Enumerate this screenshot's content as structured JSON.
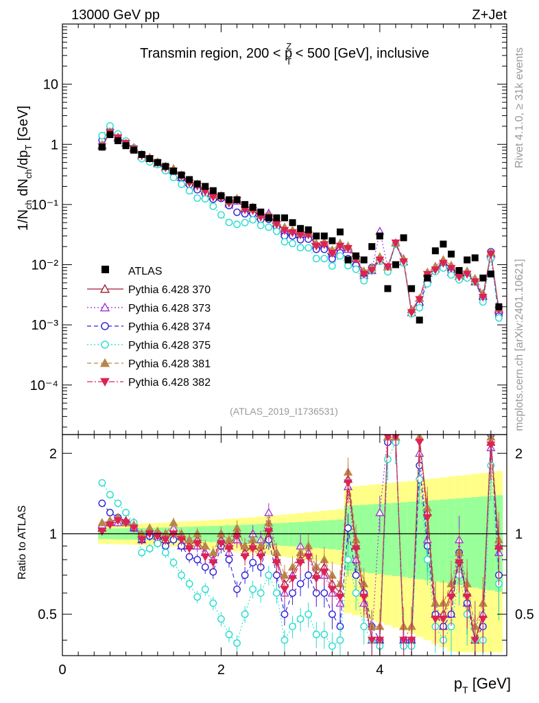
{
  "chart_data": {
    "type": "scatter",
    "header_left": "13000 GeV pp",
    "header_right": "Z+Jet",
    "title_main": "Transmin region, 200 < p",
    "title_sup": "Z",
    "title_sub": "T",
    "title_rest": " < 500 [GeV], inclusive",
    "ylabel_main": "1/N",
    "ylabel_sub1": "ch",
    "ylabel_mid": " dN",
    "ylabel_sub2": "ch",
    "ylabel_mid2": "/dp",
    "ylabel_sub3": "T",
    "ylabel_end": " [GeV]",
    "ratio_ylabel": "Ratio to ATLAS",
    "xlabel_main": "p",
    "xlabel_sub": "T",
    "xlabel_end": " [GeV]",
    "side_label_1": "Rivet 4.1.0, ≥ 31k events",
    "side_label_2": "mcplots.cern.ch [arXiv:2401.10621]",
    "analysis_id": "(ATLAS_2019_I1736531)",
    "xlim": [
      0,
      5.6
    ],
    "main_ylim": [
      1.5e-05,
      100
    ],
    "ratio_ylim": [
      0.35,
      2.35
    ],
    "x_ticks": [
      "0",
      "2",
      "4"
    ],
    "main_y_ticks": [
      "10",
      "1",
      "10⁻¹",
      "10⁻²",
      "10⁻³",
      "10⁻⁴"
    ],
    "ratio_y_ticks": [
      "2",
      "1",
      "0.5"
    ],
    "x": [
      0.5,
      0.6,
      0.7,
      0.8,
      0.9,
      1.0,
      1.1,
      1.2,
      1.3,
      1.4,
      1.5,
      1.6,
      1.7,
      1.8,
      1.9,
      2.0,
      2.1,
      2.2,
      2.3,
      2.4,
      2.5,
      2.6,
      2.7,
      2.8,
      2.9,
      3.0,
      3.1,
      3.2,
      3.3,
      3.4,
      3.5,
      3.6,
      3.7,
      3.8,
      3.9,
      4.0,
      4.1,
      4.2,
      4.3,
      4.4,
      4.5,
      4.6,
      4.7,
      4.8,
      4.9,
      5.0,
      5.1,
      5.2,
      5.3,
      5.4,
      5.5
    ],
    "atlas": [
      0.9,
      1.45,
      1.15,
      0.95,
      0.8,
      0.68,
      0.58,
      0.5,
      0.43,
      0.36,
      0.31,
      0.26,
      0.22,
      0.2,
      0.17,
      0.14,
      0.12,
      0.12,
      0.1,
      0.09,
      0.075,
      0.06,
      0.06,
      0.06,
      0.05,
      0.04,
      0.038,
      0.03,
      0.03,
      0.025,
      0.035,
      0.012,
      0.014,
      0.012,
      0.02,
      0.03,
      0.004,
      0.01,
      0.028,
      0.004,
      0.0012,
      0.006,
      0.017,
      0.022,
      0.015,
      0.008,
      0.012,
      0.013,
      0.006,
      0.007,
      0.002
    ],
    "atlas_band_color": "#ffff88",
    "atlas_stat_band_color": "#99ff99",
    "series": [
      {
        "name": "Pythia 6.428 370",
        "color": "#a01830",
        "marker": "triangle-open",
        "dash": "solid",
        "ratio": [
          1.05,
          1.1,
          1.15,
          1.12,
          1.1,
          0.95,
          1.0,
          0.98,
          0.95,
          1.02,
          0.98,
          0.9,
          0.95,
          0.85,
          0.8,
          0.95,
          0.9,
          1.0,
          0.85,
          0.9,
          0.85,
          1.05,
          0.8,
          0.65,
          0.7,
          0.8,
          0.85,
          0.7,
          0.75,
          0.65,
          0.6,
          1.6,
          0.9,
          0.6,
          0.4,
          0.4,
          2.3,
          2.3,
          0.4,
          0.4,
          2.3,
          1.2,
          0.5,
          0.5,
          0.6,
          0.8,
          0.6,
          0.4,
          0.5,
          2.2,
          0.9
        ]
      },
      {
        "name": "Pythia 6.428 373",
        "color": "#9a2fd8",
        "marker": "triangle-open",
        "dash": "dotted",
        "ratio": [
          1.08,
          1.12,
          1.1,
          1.1,
          1.05,
          1.0,
          1.02,
          0.95,
          1.0,
          1.05,
          0.9,
          0.95,
          0.9,
          0.85,
          0.8,
          1.0,
          0.85,
          0.95,
          0.9,
          1.0,
          0.95,
          1.2,
          0.85,
          0.6,
          0.7,
          0.9,
          0.85,
          0.75,
          0.7,
          0.6,
          0.55,
          1.5,
          0.8,
          0.55,
          0.4,
          1.2,
          2.3,
          2.3,
          0.4,
          0.45,
          2.0,
          0.95,
          0.55,
          0.45,
          0.5,
          0.95,
          0.55,
          0.45,
          0.5,
          2.1,
          0.85
        ]
      },
      {
        "name": "Pythia 6.428 374",
        "color": "#2a1ed8",
        "marker": "circle-open",
        "dash": "dashed",
        "ratio": [
          1.3,
          1.2,
          1.15,
          1.1,
          1.05,
          0.95,
          0.98,
          1.0,
          0.9,
          0.95,
          0.9,
          0.82,
          0.8,
          0.75,
          0.72,
          0.9,
          0.8,
          0.62,
          0.7,
          0.78,
          0.75,
          0.95,
          0.7,
          0.5,
          0.6,
          0.65,
          0.7,
          0.6,
          0.6,
          0.5,
          0.45,
          1.05,
          0.7,
          0.6,
          0.45,
          0.4,
          2.2,
          2.2,
          0.4,
          0.4,
          1.8,
          0.9,
          0.5,
          0.45,
          0.5,
          0.85,
          0.55,
          0.4,
          0.45,
          2.35,
          0.7
        ]
      },
      {
        "name": "Pythia 6.428 375",
        "color": "#22ddcc",
        "marker": "circle-open",
        "dash": "dotted",
        "ratio": [
          1.55,
          1.4,
          1.3,
          1.2,
          1.1,
          0.85,
          0.88,
          0.92,
          0.85,
          0.78,
          0.7,
          0.65,
          0.58,
          0.62,
          0.55,
          0.48,
          0.42,
          0.39,
          0.5,
          0.62,
          0.6,
          0.7,
          0.6,
          0.4,
          0.45,
          0.48,
          0.5,
          0.42,
          0.42,
          0.38,
          0.4,
          0.8,
          0.6,
          0.45,
          0.4,
          0.38,
          1.9,
          2.2,
          0.38,
          0.38,
          1.6,
          0.8,
          0.45,
          0.4,
          0.45,
          0.7,
          0.5,
          0.4,
          0.4,
          1.8,
          0.65
        ]
      },
      {
        "name": "Pythia 6.428 381",
        "color": "#b8864a",
        "marker": "triangle-filled",
        "dash": "dashed",
        "ratio": [
          1.1,
          1.12,
          1.15,
          1.1,
          1.08,
          1.0,
          1.05,
          1.02,
          1.0,
          1.1,
          1.0,
          0.95,
          1.0,
          0.9,
          0.85,
          1.0,
          0.95,
          1.05,
          0.9,
          0.95,
          0.9,
          1.1,
          0.85,
          0.7,
          0.75,
          0.85,
          0.9,
          0.75,
          0.8,
          0.7,
          0.65,
          1.7,
          0.95,
          0.65,
          0.45,
          0.45,
          2.3,
          2.3,
          0.45,
          0.45,
          2.3,
          1.25,
          0.55,
          0.55,
          0.65,
          0.85,
          0.65,
          0.45,
          0.55,
          2.3,
          0.95
        ]
      },
      {
        "name": "Pythia 6.428 382",
        "color": "#dd2255",
        "marker": "triangle-down-filled",
        "dash": "dashdot",
        "ratio": [
          1.02,
          1.08,
          1.12,
          1.1,
          1.05,
          0.95,
          1.0,
          0.98,
          0.95,
          1.0,
          0.95,
          0.88,
          0.92,
          0.82,
          0.78,
          0.92,
          0.88,
          0.98,
          0.82,
          0.88,
          0.82,
          1.02,
          0.78,
          0.62,
          0.68,
          0.78,
          0.82,
          0.68,
          0.72,
          0.62,
          0.58,
          1.55,
          0.88,
          0.58,
          0.4,
          0.4,
          2.3,
          2.3,
          0.4,
          0.4,
          2.2,
          1.15,
          0.48,
          0.48,
          0.58,
          0.78,
          0.58,
          0.4,
          0.48,
          2.15,
          0.88
        ]
      }
    ]
  }
}
